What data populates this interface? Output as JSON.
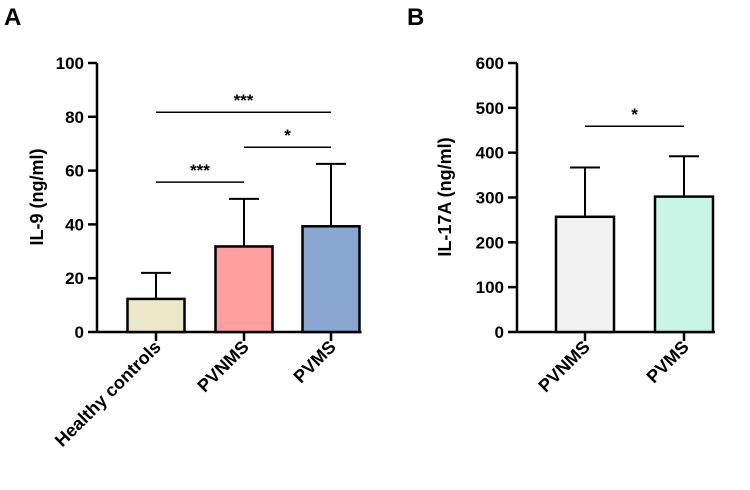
{
  "figure": {
    "panels": [
      {
        "panel_label": "A",
        "ylabel": "IL-9 (ng/ml)",
        "fill_colors": [
          "#ede7c9",
          "#ff9f9f",
          "#89a7d0"
        ]
      },
      {
        "panel_label": "B",
        "ylabel": "IL-17A (ng/ml)",
        "fill_colors": [
          "#f2f2f2",
          "#c9f5e6"
        ]
      }
    ]
  },
  "chart_data": [
    {
      "type": "bar",
      "panel": "A",
      "title": "",
      "xlabel": "",
      "ylabel": "IL-9 (ng/ml)",
      "categories": [
        "Healthy controls",
        "PVNMS",
        "PVMS"
      ],
      "values": [
        12.3,
        31.8,
        39.3
      ],
      "error_upper": [
        9.7,
        17.7,
        23.2
      ],
      "ylim": [
        0,
        100
      ],
      "yticks": [
        0,
        20,
        40,
        60,
        80,
        100
      ],
      "grid": false,
      "significance": [
        {
          "from": 0,
          "to": 1,
          "label": "***",
          "level": 55.7
        },
        {
          "from": 1,
          "to": 2,
          "label": "*",
          "level": 68.7
        },
        {
          "from": 0,
          "to": 2,
          "label": "***",
          "level": 81.7
        }
      ]
    },
    {
      "type": "bar",
      "panel": "B",
      "title": "",
      "xlabel": "",
      "ylabel": "IL-17A (ng/ml)",
      "categories": [
        "PVNMS",
        "PVMS"
      ],
      "values": [
        257,
        302
      ],
      "error_upper": [
        110,
        90
      ],
      "ylim": [
        0,
        600
      ],
      "yticks": [
        0,
        100,
        200,
        300,
        400,
        500,
        600
      ],
      "grid": false,
      "significance": [
        {
          "from": 0,
          "to": 1,
          "label": "*",
          "level": 459
        }
      ]
    }
  ]
}
